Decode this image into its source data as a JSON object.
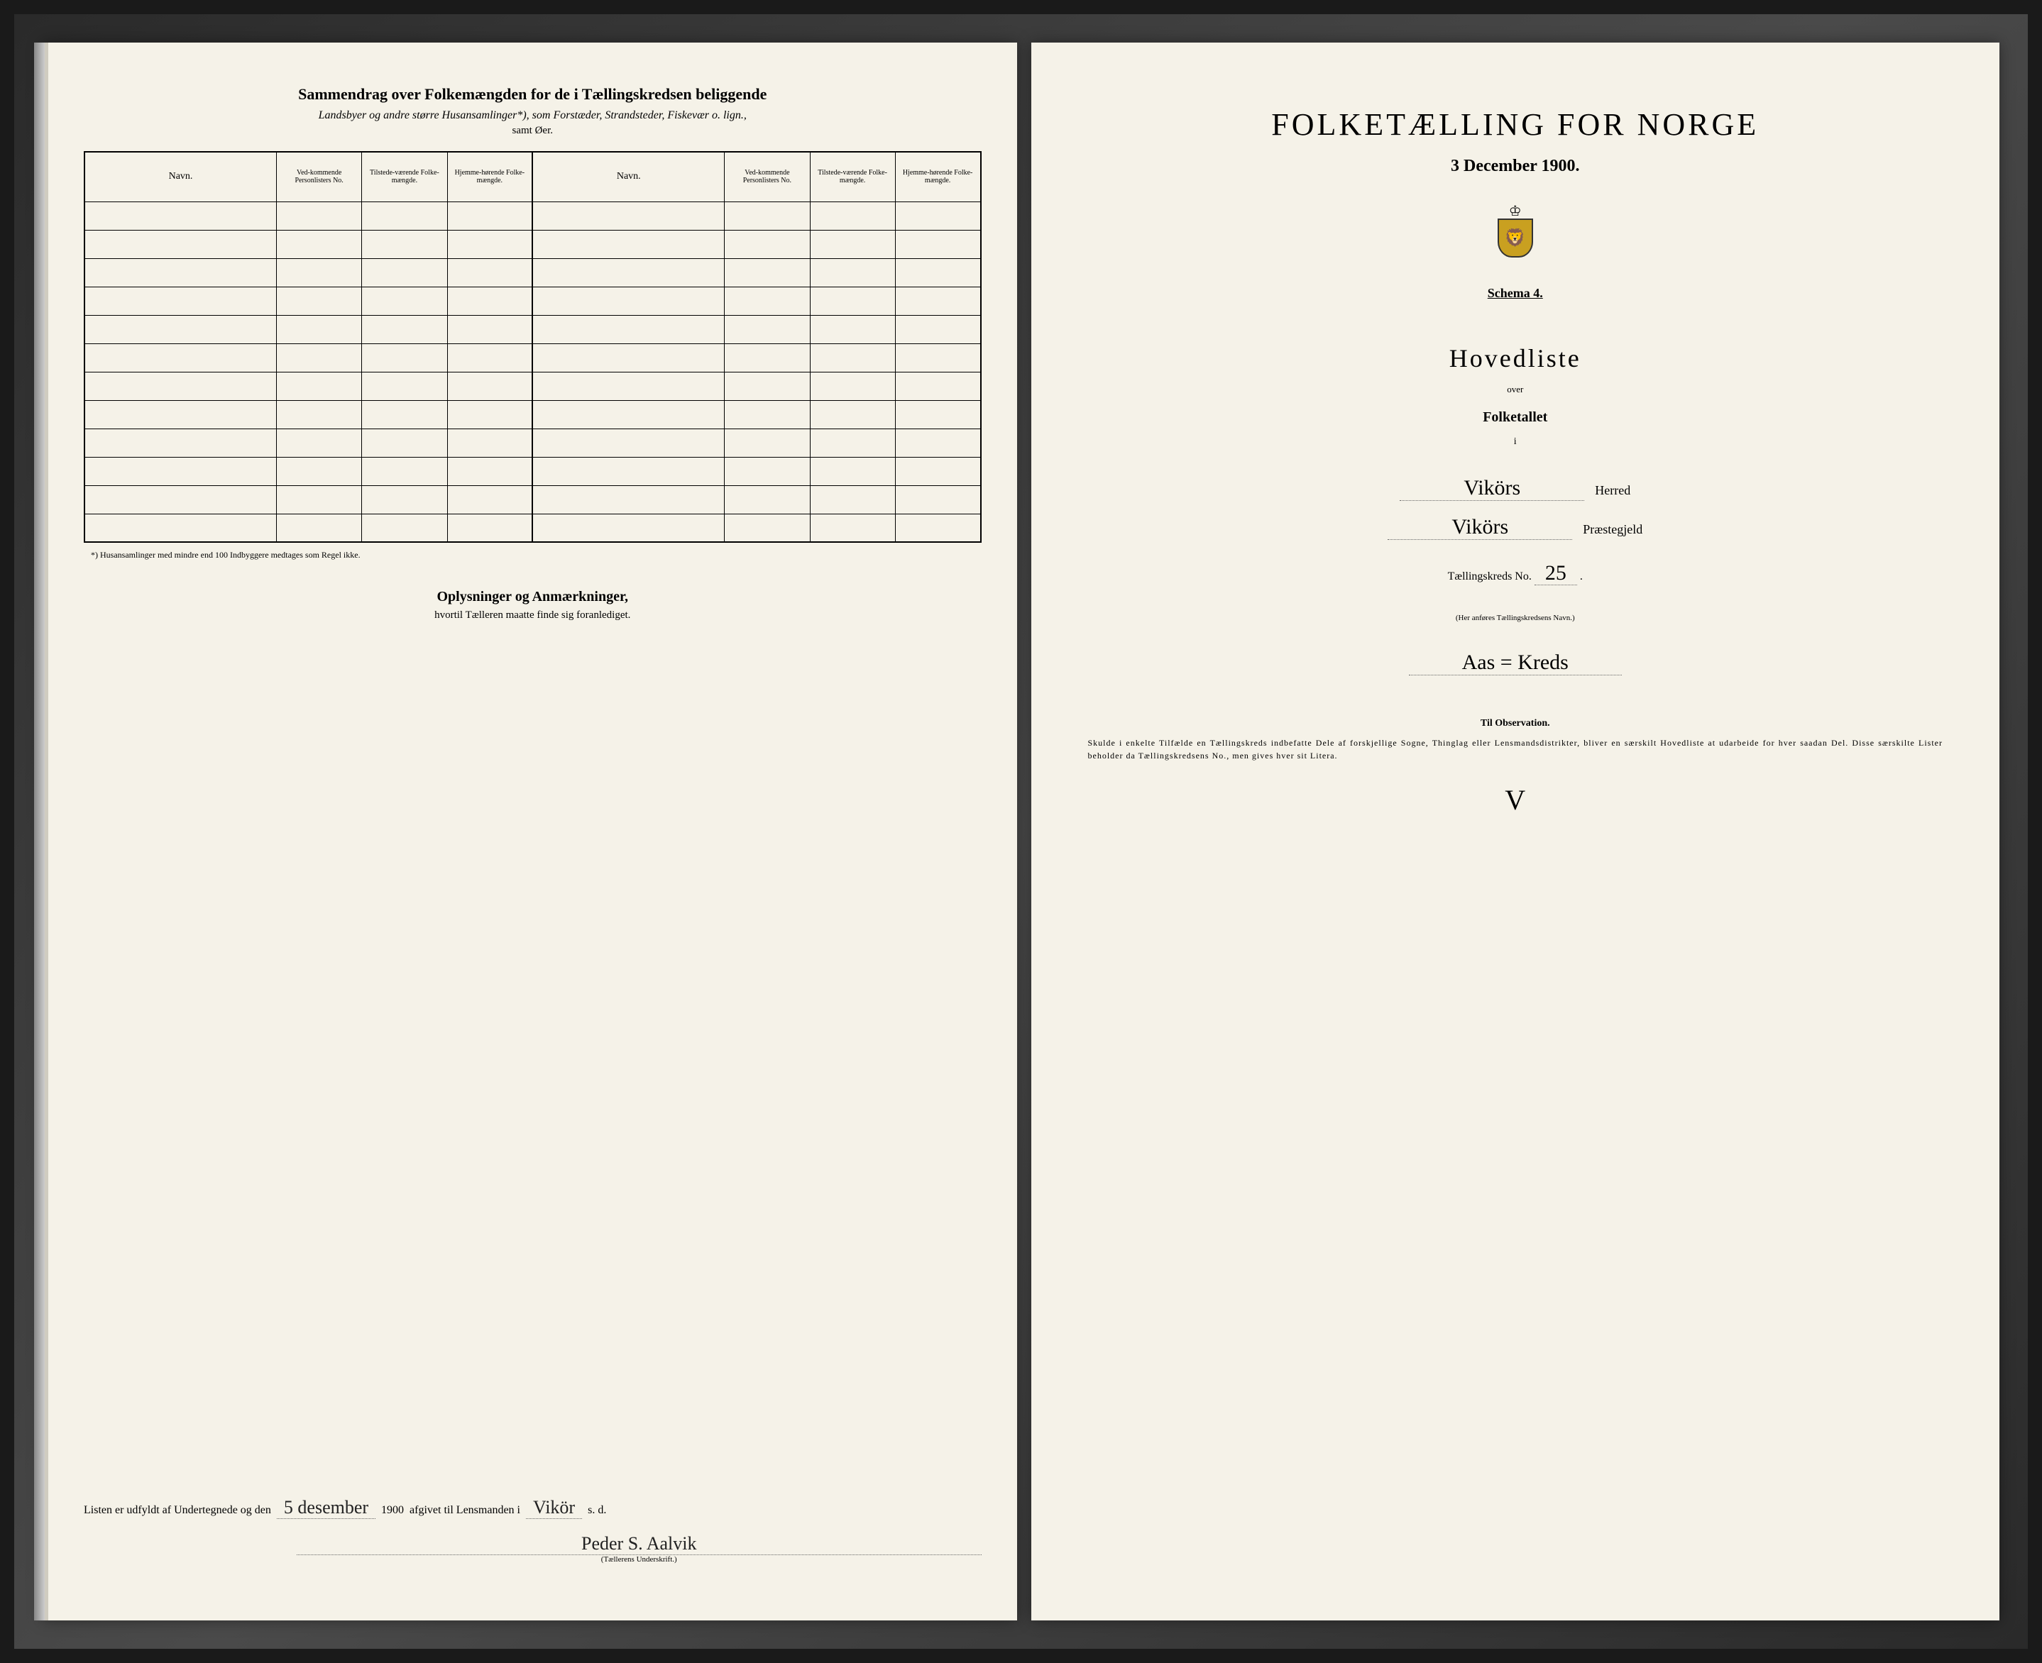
{
  "left": {
    "summary_title": "Sammendrag over Folkemængden for de i Tællingskredsen beliggende",
    "summary_sub1": "Landsbyer og andre større Husansamlinger*), som Forstæder, Strandsteder, Fiskevær o. lign.,",
    "summary_sub2": "samt Øer.",
    "headers": {
      "navn": "Navn.",
      "vedkommende": "Ved-kommende Personlisters No.",
      "tilstede": "Tilstede-værende Folke-mængde.",
      "hjemme": "Hjemme-hørende Folke-mængde."
    },
    "footnote": "*) Husansamlinger med mindre end 100 Indbyggere medtages som Regel ikke.",
    "oplysninger_title": "Oplysninger og Anmærkninger,",
    "oplysninger_sub": "hvortil Tælleren maatte finde sig foranlediget.",
    "sig_prefix": "Listen er udfyldt af Undertegnede og den",
    "sig_date": "5 desember",
    "sig_year": "1900",
    "sig_mid": "afgivet til Lensmanden i",
    "sig_place": "Vikör",
    "sig_place_extra": "s. d.",
    "signature_name": "Peder S. Aalvik",
    "signature_label": "(Tællerens Underskrift.)"
  },
  "right": {
    "main_title": "FOLKETÆLLING FOR NORGE",
    "date": "3 December 1900.",
    "schema": "Schema 4.",
    "hovedliste": "Hovedliste",
    "over": "over",
    "folketallet": "Folketallet",
    "i": "i",
    "herred_value": "Vikörs",
    "herred_label": "Herred",
    "praestegjeld_value": "Vikörs",
    "praestegjeld_label": "Præstegjeld",
    "tk_label": "Tællingskreds No.",
    "tk_value": "25",
    "small_note": "(Her anføres Tællingskredsens Navn.)",
    "kreds_name": "Aas = Kreds",
    "obs_title": "Til Observation.",
    "obs_text": "Skulde i enkelte Tilfælde en Tællingskreds indbefatte Dele af forskjellige Sogne, Thinglag eller Lensmandsdistrikter, bliver en særskilt Hovedliste at udarbeide for hver saadan Del. Disse særskilte Lister beholder da Tællingskredsens No., men gives hver sit Litera.",
    "checkmark": "V"
  },
  "layout": {
    "empty_rows": 12
  }
}
